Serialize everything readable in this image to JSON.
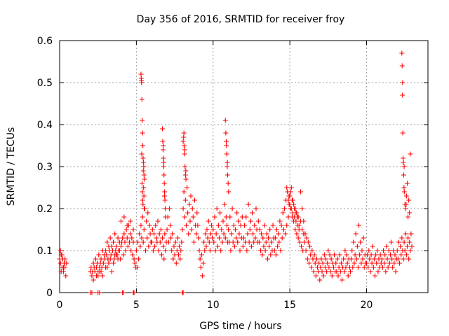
{
  "chart_data": {
    "type": "scatter",
    "title": "Day 356 of 2016, SRMTID for receiver froy",
    "xlabel": "GPS time / hours",
    "ylabel": "SRMTID / TECUs",
    "xlim": [
      0,
      24
    ],
    "ylim": [
      0,
      0.6
    ],
    "xticks": [
      0,
      5,
      10,
      15,
      20
    ],
    "xtick_labels": [
      "0",
      "5",
      "10",
      "15",
      "20"
    ],
    "yticks": [
      0,
      0.1,
      0.2,
      0.3,
      0.4,
      0.5,
      0.6
    ],
    "ytick_labels": [
      "0",
      "0.1",
      "0.2",
      "0.3",
      "0.4",
      "0.5",
      "0.6"
    ],
    "grid": true,
    "marker": "plus",
    "series": [
      {
        "name": "SRMTID",
        "color": "#ff0000",
        "x": [
          0.0,
          0.05,
          0.1,
          0.15,
          0.2,
          0.25,
          0.3,
          0.35,
          0.4,
          0.45,
          0.05,
          0.15,
          0.25,
          0.35,
          0.1,
          0.3,
          2.0,
          2.05,
          2.1,
          2.15,
          2.2,
          2.25,
          2.3,
          2.35,
          2.4,
          2.45,
          2.5,
          2.55,
          2.6,
          2.65,
          2.7,
          2.75,
          2.8,
          2.85,
          2.9,
          2.95,
          3.0,
          3.05,
          3.1,
          3.15,
          3.2,
          3.25,
          3.3,
          3.35,
          3.4,
          3.45,
          3.5,
          3.55,
          3.6,
          3.65,
          3.7,
          3.75,
          3.8,
          3.85,
          3.9,
          3.95,
          4.0,
          4.05,
          4.1,
          4.15,
          4.2,
          4.25,
          4.3,
          4.35,
          4.4,
          4.45,
          4.5,
          4.55,
          4.6,
          4.65,
          4.7,
          4.75,
          4.8,
          4.85,
          4.9,
          4.95,
          2.2,
          2.4,
          2.6,
          2.8,
          3.0,
          3.2,
          3.4,
          3.6,
          3.8,
          4.0,
          4.2,
          4.4,
          4.6,
          4.8,
          3.1,
          3.3,
          3.5,
          3.7,
          3.9,
          2.5,
          2.7,
          5.0,
          5.05,
          5.1,
          5.15,
          5.2,
          5.25,
          5.3,
          5.35,
          5.4,
          5.45,
          5.5,
          5.55,
          5.6,
          5.65,
          5.7,
          5.75,
          5.8,
          5.85,
          5.9,
          5.95,
          5.3,
          5.32,
          5.34,
          5.36,
          5.38,
          5.4,
          5.42,
          5.44,
          5.46,
          5.48,
          5.5,
          5.52,
          5.35,
          5.37,
          5.39,
          5.41,
          5.43,
          5.45,
          5.47,
          5.49,
          5.33,
          5.51,
          6.0,
          6.05,
          6.1,
          6.15,
          6.2,
          6.25,
          6.3,
          6.35,
          6.4,
          6.45,
          6.5,
          6.55,
          6.6,
          6.65,
          6.7,
          6.75,
          6.8,
          6.85,
          6.9,
          6.95,
          6.7,
          6.72,
          6.74,
          6.76,
          6.78,
          6.8,
          6.82,
          6.84,
          6.86,
          6.88,
          6.9,
          6.75,
          6.79,
          6.83,
          7.0,
          7.05,
          7.1,
          7.15,
          7.2,
          7.25,
          7.3,
          7.35,
          7.4,
          7.45,
          7.5,
          7.55,
          7.6,
          7.65,
          7.7,
          7.75,
          7.8,
          7.85,
          7.9,
          7.95,
          8.0,
          8.05,
          8.1,
          8.15,
          8.2,
          8.25,
          8.3,
          8.35,
          8.4,
          8.45,
          8.5,
          8.55,
          8.6,
          8.65,
          8.7,
          8.75,
          8.8,
          8.85,
          8.9,
          8.95,
          8.05,
          8.08,
          8.11,
          8.14,
          8.17,
          8.2,
          8.23,
          8.1,
          8.16,
          8.22,
          9.0,
          9.05,
          9.1,
          9.15,
          9.2,
          9.25,
          9.3,
          9.35,
          9.4,
          9.45,
          9.5,
          9.55,
          9.6,
          9.65,
          9.7,
          9.75,
          9.8,
          9.85,
          9.9,
          9.95,
          10.0,
          10.05,
          10.1,
          10.15,
          10.2,
          10.25,
          10.3,
          10.35,
          10.4,
          10.45,
          10.5,
          10.55,
          10.6,
          10.65,
          10.7,
          10.75,
          10.8,
          10.85,
          10.9,
          10.95,
          10.8,
          10.83,
          10.86,
          10.89,
          10.92,
          10.95,
          10.98,
          11.01,
          10.87,
          10.93,
          11.0,
          11.05,
          11.1,
          11.15,
          11.2,
          11.25,
          11.3,
          11.35,
          11.4,
          11.45,
          11.5,
          11.55,
          11.6,
          11.65,
          11.7,
          11.75,
          11.8,
          11.85,
          11.9,
          11.95,
          12.0,
          12.05,
          12.1,
          12.15,
          12.2,
          12.25,
          12.3,
          12.35,
          12.4,
          12.45,
          12.5,
          12.55,
          12.6,
          12.65,
          12.7,
          12.75,
          12.8,
          12.85,
          12.9,
          12.95,
          13.0,
          13.05,
          13.1,
          13.15,
          13.2,
          13.25,
          13.3,
          13.35,
          13.4,
          13.45,
          13.5,
          13.55,
          13.6,
          13.65,
          13.7,
          13.75,
          13.8,
          13.85,
          13.9,
          13.95,
          14.0,
          14.05,
          14.1,
          14.15,
          14.2,
          14.25,
          14.3,
          14.35,
          14.4,
          14.45,
          14.5,
          14.55,
          14.6,
          14.65,
          14.7,
          14.75,
          14.8,
          14.85,
          14.9,
          14.95,
          15.0,
          15.05,
          15.1,
          15.15,
          15.2,
          15.25,
          15.3,
          15.35,
          15.4,
          15.45,
          15.5,
          15.55,
          15.6,
          15.65,
          15.7,
          15.75,
          15.8,
          15.85,
          15.9,
          15.95,
          14.8,
          14.85,
          14.9,
          14.95,
          15.0,
          15.05,
          15.1,
          15.15,
          15.2,
          15.25,
          15.3,
          15.35,
          15.4,
          15.45,
          15.5,
          15.55,
          15.6,
          15.7,
          15.8,
          15.9,
          16.0,
          16.05,
          16.1,
          16.15,
          16.2,
          16.25,
          16.3,
          16.35,
          16.4,
          16.45,
          16.5,
          16.55,
          16.6,
          16.65,
          16.7,
          16.75,
          16.8,
          16.85,
          16.9,
          16.95,
          17.0,
          17.05,
          17.1,
          17.15,
          17.2,
          17.25,
          17.3,
          17.35,
          17.4,
          17.45,
          17.5,
          17.55,
          17.6,
          17.65,
          17.7,
          17.75,
          17.8,
          17.85,
          17.9,
          17.95,
          18.0,
          18.05,
          18.1,
          18.15,
          18.2,
          18.25,
          18.3,
          18.35,
          18.4,
          18.45,
          18.5,
          18.55,
          18.6,
          18.65,
          18.7,
          18.75,
          18.8,
          18.85,
          18.9,
          18.95,
          19.0,
          19.05,
          19.1,
          19.15,
          19.2,
          19.25,
          19.3,
          19.35,
          19.4,
          19.45,
          19.5,
          19.55,
          19.6,
          19.65,
          19.7,
          19.75,
          19.8,
          19.85,
          19.9,
          19.95,
          20.0,
          20.05,
          20.1,
          20.15,
          20.2,
          20.25,
          20.3,
          20.35,
          20.4,
          20.45,
          20.5,
          20.55,
          20.6,
          20.65,
          20.7,
          20.75,
          20.8,
          20.85,
          20.9,
          20.95,
          21.0,
          21.05,
          21.1,
          21.15,
          21.2,
          21.25,
          21.3,
          21.35,
          21.4,
          21.45,
          21.5,
          21.55,
          21.6,
          21.65,
          21.7,
          21.75,
          21.8,
          21.85,
          21.9,
          21.95,
          22.0,
          22.05,
          22.1,
          22.15,
          22.2,
          22.25,
          22.3,
          22.35,
          22.4,
          22.45,
          22.5,
          22.55,
          22.6,
          22.65,
          22.7,
          22.75,
          22.8,
          22.85,
          22.9,
          22.95,
          22.3,
          22.32,
          22.34,
          22.36,
          22.38,
          22.4,
          22.42,
          22.44,
          22.46,
          22.5,
          22.55,
          22.6,
          22.65,
          22.7,
          22.75,
          22.8,
          22.85,
          22.35,
          22.45,
          22.58,
          2.0,
          2.1,
          2.5,
          2.6,
          4.1,
          4.15,
          4.8,
          4.85,
          8.0,
          8.05
        ],
        "y": [
          0.08,
          0.07,
          0.09,
          0.06,
          0.08,
          0.05,
          0.07,
          0.06,
          0.04,
          0.07,
          0.1,
          0.09,
          0.06,
          0.08,
          0.05,
          0.07,
          0.05,
          0.06,
          0.04,
          0.05,
          0.07,
          0.06,
          0.05,
          0.08,
          0.06,
          0.07,
          0.05,
          0.09,
          0.06,
          0.07,
          0.08,
          0.06,
          0.1,
          0.07,
          0.09,
          0.08,
          0.1,
          0.09,
          0.12,
          0.08,
          0.11,
          0.1,
          0.13,
          0.09,
          0.11,
          0.1,
          0.12,
          0.08,
          0.14,
          0.1,
          0.11,
          0.09,
          0.13,
          0.1,
          0.12,
          0.08,
          0.11,
          0.12,
          0.13,
          0.09,
          0.14,
          0.12,
          0.1,
          0.15,
          0.13,
          0.11,
          0.16,
          0.12,
          0.14,
          0.1,
          0.13,
          0.09,
          0.12,
          0.08,
          0.07,
          0.06,
          0.03,
          0.04,
          0.05,
          0.04,
          0.06,
          0.07,
          0.05,
          0.09,
          0.08,
          0.17,
          0.18,
          0.16,
          0.17,
          0.15,
          0.06,
          0.08,
          0.07,
          0.09,
          0.1,
          0.04,
          0.05,
          0.1,
          0.06,
          0.12,
          0.08,
          0.14,
          0.11,
          0.16,
          0.13,
          0.18,
          0.12,
          0.15,
          0.2,
          0.1,
          0.17,
          0.13,
          0.19,
          0.11,
          0.16,
          0.14,
          0.12,
          0.52,
          0.51,
          0.5,
          0.46,
          0.41,
          0.38,
          0.35,
          0.32,
          0.31,
          0.3,
          0.28,
          0.27,
          0.33,
          0.26,
          0.24,
          0.22,
          0.21,
          0.29,
          0.25,
          0.23,
          0.505,
          0.2,
          0.12,
          0.15,
          0.1,
          0.14,
          0.11,
          0.16,
          0.13,
          0.12,
          0.17,
          0.1,
          0.14,
          0.12,
          0.15,
          0.09,
          0.13,
          0.11,
          0.08,
          0.14,
          0.1,
          0.12,
          0.39,
          0.36,
          0.34,
          0.32,
          0.3,
          0.28,
          0.26,
          0.24,
          0.22,
          0.2,
          0.18,
          0.35,
          0.31,
          0.23,
          0.15,
          0.18,
          0.12,
          0.2,
          0.16,
          0.13,
          0.1,
          0.14,
          0.08,
          0.11,
          0.09,
          0.12,
          0.07,
          0.1,
          0.13,
          0.09,
          0.11,
          0.08,
          0.1,
          0.12,
          0.15,
          0.2,
          0.24,
          0.18,
          0.22,
          0.16,
          0.25,
          0.19,
          0.14,
          0.21,
          0.17,
          0.23,
          0.15,
          0.2,
          0.18,
          0.12,
          0.22,
          0.16,
          0.14,
          0.19,
          0.36,
          0.37,
          0.35,
          0.33,
          0.3,
          0.28,
          0.27,
          0.38,
          0.34,
          0.29,
          0.16,
          0.13,
          0.1,
          0.08,
          0.06,
          0.09,
          0.04,
          0.07,
          0.12,
          0.1,
          0.14,
          0.11,
          0.15,
          0.13,
          0.17,
          0.12,
          0.1,
          0.14,
          0.16,
          0.13,
          0.15,
          0.12,
          0.18,
          0.1,
          0.14,
          0.2,
          0.11,
          0.16,
          0.13,
          0.19,
          0.1,
          0.15,
          0.12,
          0.17,
          0.14,
          0.21,
          0.13,
          0.18,
          0.16,
          0.12,
          0.41,
          0.38,
          0.36,
          0.33,
          0.3,
          0.28,
          0.26,
          0.24,
          0.35,
          0.31,
          0.15,
          0.12,
          0.18,
          0.1,
          0.14,
          0.2,
          0.12,
          0.16,
          0.11,
          0.15,
          0.13,
          0.19,
          0.12,
          0.17,
          0.14,
          0.1,
          0.16,
          0.13,
          0.18,
          0.11,
          0.13,
          0.16,
          0.12,
          0.18,
          0.1,
          0.14,
          0.21,
          0.12,
          0.15,
          0.17,
          0.11,
          0.19,
          0.14,
          0.12,
          0.16,
          0.13,
          0.2,
          0.15,
          0.12,
          0.17,
          0.12,
          0.15,
          0.1,
          0.14,
          0.09,
          0.13,
          0.11,
          0.16,
          0.1,
          0.12,
          0.14,
          0.08,
          0.13,
          0.11,
          0.15,
          0.09,
          0.12,
          0.1,
          0.16,
          0.13,
          0.1,
          0.13,
          0.09,
          0.15,
          0.11,
          0.14,
          0.12,
          0.17,
          0.1,
          0.16,
          0.13,
          0.19,
          0.15,
          0.2,
          0.14,
          0.22,
          0.16,
          0.24,
          0.18,
          0.21,
          0.23,
          0.2,
          0.25,
          0.18,
          0.22,
          0.17,
          0.2,
          0.15,
          0.19,
          0.14,
          0.18,
          0.13,
          0.16,
          0.12,
          0.17,
          0.11,
          0.15,
          0.1,
          0.14,
          0.12,
          0.25,
          0.24,
          0.22,
          0.23,
          0.21,
          0.24,
          0.2,
          0.22,
          0.19,
          0.21,
          0.18,
          0.2,
          0.17,
          0.19,
          0.16,
          0.18,
          0.15,
          0.24,
          0.2,
          0.17,
          0.14,
          0.1,
          0.13,
          0.08,
          0.12,
          0.07,
          0.11,
          0.09,
          0.06,
          0.1,
          0.08,
          0.05,
          0.09,
          0.07,
          0.04,
          0.08,
          0.06,
          0.05,
          0.07,
          0.03,
          0.06,
          0.08,
          0.05,
          0.07,
          0.04,
          0.09,
          0.06,
          0.08,
          0.05,
          0.07,
          0.1,
          0.06,
          0.09,
          0.05,
          0.08,
          0.04,
          0.07,
          0.06,
          0.09,
          0.05,
          0.07,
          0.05,
          0.08,
          0.04,
          0.06,
          0.09,
          0.05,
          0.07,
          0.03,
          0.06,
          0.08,
          0.05,
          0.1,
          0.06,
          0.09,
          0.07,
          0.04,
          0.08,
          0.06,
          0.05,
          0.08,
          0.1,
          0.06,
          0.12,
          0.07,
          0.09,
          0.14,
          0.08,
          0.11,
          0.06,
          0.16,
          0.09,
          0.12,
          0.07,
          0.1,
          0.08,
          0.13,
          0.06,
          0.09,
          0.07,
          0.07,
          0.09,
          0.06,
          0.1,
          0.08,
          0.05,
          0.09,
          0.07,
          0.11,
          0.06,
          0.08,
          0.04,
          0.09,
          0.07,
          0.1,
          0.05,
          0.08,
          0.06,
          0.09,
          0.07,
          0.08,
          0.06,
          0.1,
          0.07,
          0.09,
          0.05,
          0.11,
          0.08,
          0.06,
          0.1,
          0.07,
          0.09,
          0.12,
          0.08,
          0.06,
          0.1,
          0.07,
          0.09,
          0.05,
          0.08,
          0.1,
          0.08,
          0.12,
          0.07,
          0.11,
          0.09,
          0.13,
          0.1,
          0.08,
          0.12,
          0.1,
          0.14,
          0.09,
          0.11,
          0.13,
          0.08,
          0.12,
          0.1,
          0.14,
          0.11,
          0.57,
          0.54,
          0.47,
          0.38,
          0.32,
          0.31,
          0.28,
          0.25,
          0.24,
          0.21,
          0.2,
          0.23,
          0.26,
          0.18,
          0.22,
          0.19,
          0.33,
          0.5,
          0.3,
          0.21,
          0.0,
          0.0,
          0.0,
          0.0,
          0.0,
          0.0,
          0.0,
          0.0,
          0.0,
          0.0
        ]
      }
    ]
  }
}
